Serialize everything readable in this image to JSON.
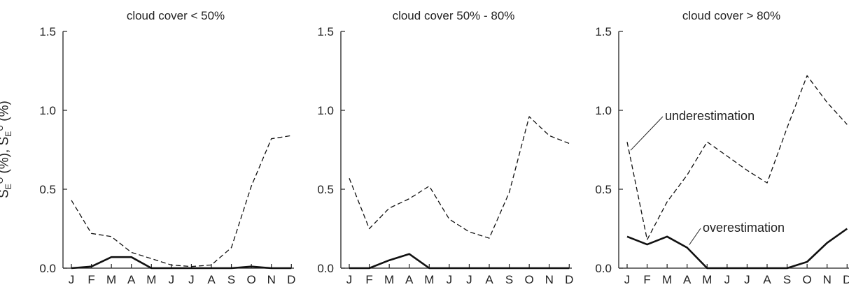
{
  "chart_data": [
    {
      "type": "line",
      "title": "cloud cover < 50%",
      "x": [
        "J",
        "F",
        "M",
        "A",
        "M",
        "J",
        "J",
        "A",
        "S",
        "O",
        "N",
        "D"
      ],
      "ylim": [
        0,
        1.5
      ],
      "yticks": [
        "0.0",
        "0.5",
        "1.0",
        "1.5"
      ],
      "ylabel": "S_E^O (%), S_E^U (%)",
      "series": [
        {
          "style": "dashed",
          "values": [
            0.43,
            0.22,
            0.2,
            0.1,
            0.06,
            0.02,
            0.01,
            0.02,
            0.13,
            0.52,
            0.82,
            0.84
          ]
        },
        {
          "style": "solid",
          "values": [
            0.0,
            0.01,
            0.07,
            0.07,
            0.0,
            0.0,
            0.0,
            0.0,
            0.0,
            0.01,
            0.0,
            0.0
          ]
        }
      ],
      "annotations": []
    },
    {
      "type": "line",
      "title": "cloud cover 50% - 80%",
      "x": [
        "J",
        "F",
        "M",
        "A",
        "M",
        "J",
        "J",
        "A",
        "S",
        "O",
        "N",
        "D"
      ],
      "ylim": [
        0,
        1.5
      ],
      "yticks": [
        "0.0",
        "0.5",
        "1.0",
        "1.5"
      ],
      "series": [
        {
          "style": "dashed",
          "values": [
            0.57,
            0.25,
            0.38,
            0.44,
            0.52,
            0.31,
            0.23,
            0.19,
            0.48,
            0.96,
            0.84,
            0.79
          ]
        },
        {
          "style": "solid",
          "values": [
            0.0,
            0.0,
            0.05,
            0.09,
            0.0,
            0.0,
            0.0,
            0.0,
            0.0,
            0.0,
            0.0,
            0.0
          ]
        }
      ],
      "annotations": []
    },
    {
      "type": "line",
      "title": "cloud cover > 80%",
      "x": [
        "J",
        "F",
        "M",
        "A",
        "M",
        "J",
        "J",
        "A",
        "S",
        "O",
        "N",
        "D"
      ],
      "ylim": [
        0,
        1.5
      ],
      "yticks": [
        "0.0",
        "0.5",
        "1.0",
        "1.5"
      ],
      "series": [
        {
          "style": "dashed",
          "values": [
            0.8,
            0.18,
            0.42,
            0.59,
            0.8,
            0.71,
            0.62,
            0.54,
            0.89,
            1.22,
            1.05,
            0.91
          ]
        },
        {
          "style": "solid",
          "values": [
            0.2,
            0.15,
            0.2,
            0.13,
            0.0,
            0.0,
            0.0,
            0.0,
            0.0,
            0.04,
            0.16,
            0.25
          ]
        }
      ],
      "annotations": [
        {
          "text": "underestimation",
          "series": 0,
          "point": 0
        },
        {
          "text": "overestimation",
          "series": 1,
          "point": 3
        }
      ]
    }
  ]
}
